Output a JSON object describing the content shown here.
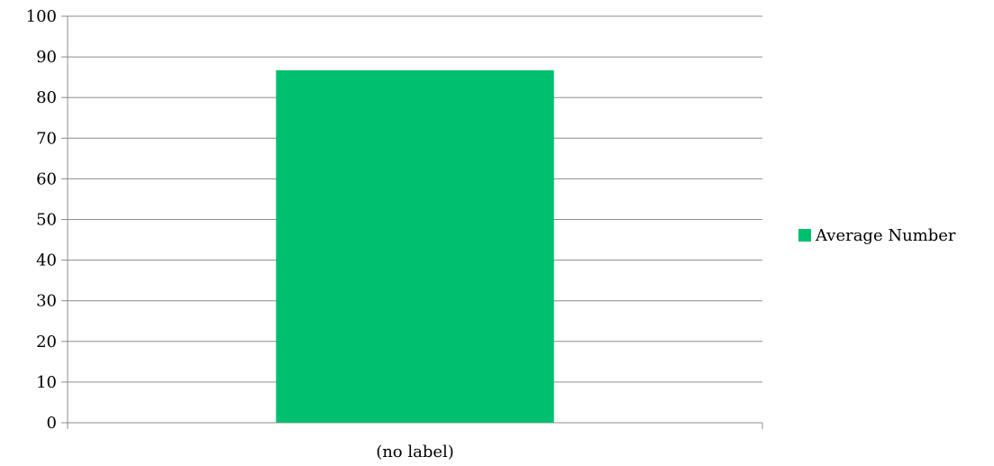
{
  "chart_data": {
    "type": "bar",
    "categories": [
      "(no label)"
    ],
    "series": [
      {
        "name": "Average Number",
        "values": [
          86.7
        ],
        "color": "#00BF6F"
      }
    ],
    "ylim": [
      0,
      100
    ],
    "ytick_step": 10,
    "yticks": [
      "0",
      "10",
      "20",
      "30",
      "40",
      "50",
      "60",
      "70",
      "80",
      "90",
      "100"
    ],
    "grid": true,
    "legend_position": "right",
    "title": "",
    "xlabel": "",
    "ylabel": ""
  }
}
